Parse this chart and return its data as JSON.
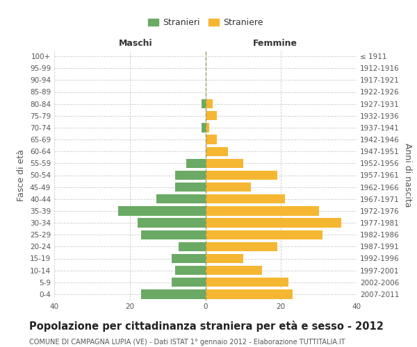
{
  "age_groups": [
    "0-4",
    "5-9",
    "10-14",
    "15-19",
    "20-24",
    "25-29",
    "30-34",
    "35-39",
    "40-44",
    "45-49",
    "50-54",
    "55-59",
    "60-64",
    "65-69",
    "70-74",
    "75-79",
    "80-84",
    "85-89",
    "90-94",
    "95-99",
    "100+"
  ],
  "birth_years": [
    "2007-2011",
    "2002-2006",
    "1997-2001",
    "1992-1996",
    "1987-1991",
    "1982-1986",
    "1977-1981",
    "1972-1976",
    "1967-1971",
    "1962-1966",
    "1957-1961",
    "1952-1956",
    "1947-1951",
    "1942-1946",
    "1937-1941",
    "1932-1936",
    "1927-1931",
    "1922-1926",
    "1917-1921",
    "1912-1916",
    "≤ 1911"
  ],
  "males": [
    17,
    9,
    8,
    9,
    7,
    17,
    18,
    23,
    13,
    8,
    8,
    5,
    0,
    0,
    1,
    0,
    1,
    0,
    0,
    0,
    0
  ],
  "females": [
    23,
    22,
    15,
    10,
    19,
    31,
    36,
    30,
    21,
    12,
    19,
    10,
    6,
    3,
    1,
    3,
    2,
    0,
    0,
    0,
    0
  ],
  "male_color": "#6aaa64",
  "female_color": "#f5b731",
  "background_color": "#ffffff",
  "grid_color": "#cccccc",
  "title": "Popolazione per cittadinanza straniera per età e sesso - 2012",
  "subtitle": "COMUNE DI CAMPAGNA LUPIA (VE) - Dati ISTAT 1° gennaio 2012 - Elaborazione TUTTITALIA.IT",
  "ylabel_left": "Fasce di età",
  "ylabel_right": "Anni di nascita",
  "label_maschi": "Maschi",
  "label_femmine": "Femmine",
  "legend_stranieri": "Stranieri",
  "legend_straniere": "Straniere",
  "xlim": 40,
  "title_fontsize": 10.5,
  "subtitle_fontsize": 7.0,
  "label_fontsize": 9,
  "tick_fontsize": 7.5,
  "bar_height": 0.78
}
